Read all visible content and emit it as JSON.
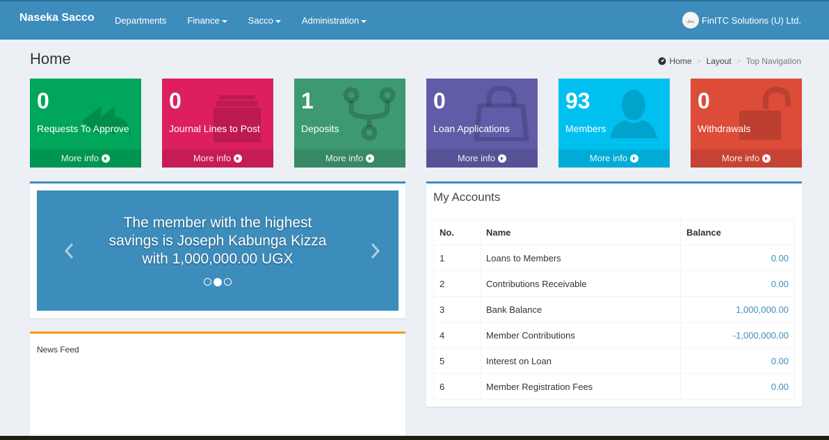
{
  "brand": "Naseka Sacco",
  "nav": [
    {
      "label": "Departments",
      "dropdown": false
    },
    {
      "label": "Finance",
      "dropdown": true
    },
    {
      "label": "Sacco",
      "dropdown": true
    },
    {
      "label": "Administration",
      "dropdown": true
    }
  ],
  "user": {
    "name": "FinITC Solutions (U) Ltd."
  },
  "page_title": "Home",
  "breadcrumb": [
    "Home",
    "Layout",
    "Top Navigation"
  ],
  "stat_boxes": [
    {
      "value": "0",
      "label": "Requests To Approve",
      "more": "More info",
      "color": "#00a65a",
      "icon": "reply-all-icon"
    },
    {
      "value": "0",
      "label": "Journal Lines to Post",
      "more": "More info",
      "color": "#dd1f5f",
      "icon": "archive-icon"
    },
    {
      "value": "1",
      "label": "Deposits",
      "more": "More info",
      "color": "#3d9970",
      "icon": "code-fork-icon"
    },
    {
      "value": "0",
      "label": "Loan Applications",
      "more": "More info",
      "color": "#605ca8",
      "icon": "shopping-bag-icon"
    },
    {
      "value": "93",
      "label": "Members",
      "more": "More info",
      "color": "#00c0ef",
      "icon": "user-icon"
    },
    {
      "value": "0",
      "label": "Withdrawals",
      "more": "More info",
      "color": "#dd4b39",
      "icon": "unlock-icon"
    }
  ],
  "carousel": {
    "text": "The member with the highest savings is Joseph Kabunga Kizza with 1,000,000.00 UGX",
    "slides": 3,
    "active_slide": 2
  },
  "news_feed": {
    "title": "News Feed"
  },
  "accounts": {
    "title": "My Accounts",
    "columns": [
      "No.",
      "Name",
      "Balance"
    ],
    "rows": [
      {
        "no": "1",
        "name": "Loans to Members",
        "balance": "0.00"
      },
      {
        "no": "2",
        "name": "Contributions Receivable",
        "balance": "0.00"
      },
      {
        "no": "3",
        "name": "Bank Balance",
        "balance": "1,000,000.00"
      },
      {
        "no": "4",
        "name": "Member Contributions",
        "balance": "-1,000,000.00"
      },
      {
        "no": "5",
        "name": "Interest on Loan",
        "balance": "0.00"
      },
      {
        "no": "6",
        "name": "Member Registration Fees",
        "balance": "0.00"
      }
    ]
  }
}
